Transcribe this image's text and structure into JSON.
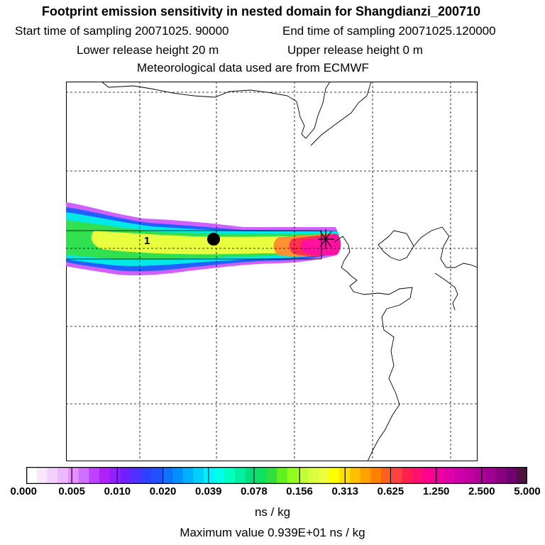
{
  "header": {
    "title": "Footprint emission sensitivity in nested domain for Shangdianzi_200710",
    "start_label": "Start time of sampling 20071025. 90000",
    "end_label": "End time of sampling 20071025.120000",
    "lower_label": "Lower release height   20 m",
    "upper_label": "Upper release height    0 m",
    "met_label": "Meteorological data used are from ECMWF"
  },
  "map": {
    "marker_label": "1",
    "plume_colors": {
      "outer": "#c020ff",
      "blue": "#2040ff",
      "cyan": "#00e8e0",
      "green": "#40e040",
      "yellow": "#e8ff40",
      "orange": "#ff9020",
      "red": "#ff2040",
      "magenta": "#ff10a0"
    }
  },
  "chart_data": {
    "type": "heatmap",
    "title": "Footprint emission sensitivity in nested domain for Shangdianzi_200710",
    "colorbar": {
      "tick_labels": [
        "0.000",
        "0.005",
        "0.010",
        "0.020",
        "0.039",
        "0.078",
        "0.156",
        "0.313",
        "0.625",
        "1.250",
        "2.500",
        "5.000"
      ],
      "ticks": [
        0.0,
        0.005,
        0.01,
        0.02,
        0.039,
        0.078,
        0.156,
        0.313,
        0.625,
        1.25,
        2.5,
        5.0
      ],
      "colors": [
        "#ffffff",
        "#fbe8ff",
        "#f4d0ff",
        "#eeb8ff",
        "#e890ff",
        "#d070ff",
        "#c040ff",
        "#b020f8",
        "#9020ff",
        "#7020ff",
        "#5030ff",
        "#3040ff",
        "#2050ff",
        "#1070ff",
        "#0090ff",
        "#00b0ff",
        "#00d0ff",
        "#00f0ff",
        "#00ffe8",
        "#00ffc0",
        "#00f0a0",
        "#00e080",
        "#10e060",
        "#30e040",
        "#60f020",
        "#90ff20",
        "#c0ff30",
        "#d8ff40",
        "#eeff40",
        "#ffff00",
        "#ffe000",
        "#ffc000",
        "#ffa000",
        "#ff8000",
        "#ff6020",
        "#ff4040",
        "#ff2050",
        "#ff1070",
        "#ff0090",
        "#f000a0",
        "#e000a8",
        "#d000a8",
        "#c000a0",
        "#b00098",
        "#a00090",
        "#880080",
        "#700070",
        "#501040"
      ],
      "units": "ns / kg"
    },
    "max_value_label": "Maximum value  0.939E+01 ns / kg"
  }
}
